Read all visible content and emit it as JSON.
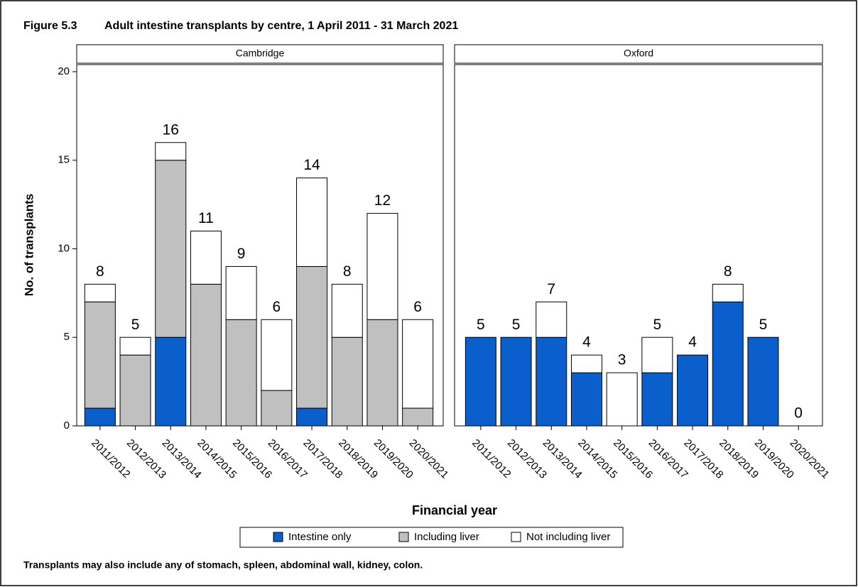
{
  "figure_label": "Figure 5.3",
  "title": "Adult intestine transplants by centre, 1 April 2011 - 31 March 2021",
  "ylabel": "No. of transplants",
  "xlabel": "Financial year",
  "footnote": "Transplants may also include any of stomach, spleen, abdominal wall, kidney, colon.",
  "chart_data": [
    {
      "type": "stacked-bar",
      "panel": "Cambridge",
      "categories": [
        "2011/2012",
        "2012/2013",
        "2013/2014",
        "2014/2015",
        "2015/2016",
        "2016/2017",
        "2017/2018",
        "2018/2019",
        "2019/2020",
        "2020/2021"
      ],
      "series": [
        {
          "name": "Intestine only",
          "color": "#0a5fcd",
          "values": [
            1,
            0,
            5,
            0,
            0,
            0,
            1,
            0,
            0,
            0
          ]
        },
        {
          "name": "Including liver",
          "color": "#c0c0c0",
          "values": [
            6,
            4,
            10,
            8,
            6,
            2,
            8,
            5,
            6,
            1
          ]
        },
        {
          "name": "Not including liver",
          "color": "#ffffff",
          "values": [
            1,
            1,
            1,
            3,
            3,
            4,
            5,
            3,
            6,
            5
          ]
        }
      ],
      "totals": [
        8,
        5,
        16,
        11,
        9,
        6,
        14,
        8,
        12,
        6
      ],
      "ylim": [
        0,
        20.4
      ],
      "yticks": [
        0,
        5,
        10,
        15,
        20
      ]
    },
    {
      "type": "stacked-bar",
      "panel": "Oxford",
      "categories": [
        "2011/2012",
        "2012/2013",
        "2013/2014",
        "2014/2015",
        "2015/2016",
        "2016/2017",
        "2017/2018",
        "2018/2019",
        "2019/2020",
        "2020/2021"
      ],
      "series": [
        {
          "name": "Intestine only",
          "color": "#0a5fcd",
          "values": [
            5,
            5,
            5,
            3,
            0,
            3,
            4,
            7,
            5,
            0
          ]
        },
        {
          "name": "Including liver",
          "color": "#c0c0c0",
          "values": [
            0,
            0,
            0,
            0,
            0,
            0,
            0,
            0,
            0,
            0
          ]
        },
        {
          "name": "Not including liver",
          "color": "#ffffff",
          "values": [
            0,
            0,
            2,
            1,
            3,
            2,
            0,
            1,
            0,
            0
          ]
        }
      ],
      "totals": [
        5,
        5,
        7,
        4,
        3,
        5,
        4,
        8,
        5,
        0
      ],
      "ylim": [
        0,
        20.4
      ]
    }
  ]
}
